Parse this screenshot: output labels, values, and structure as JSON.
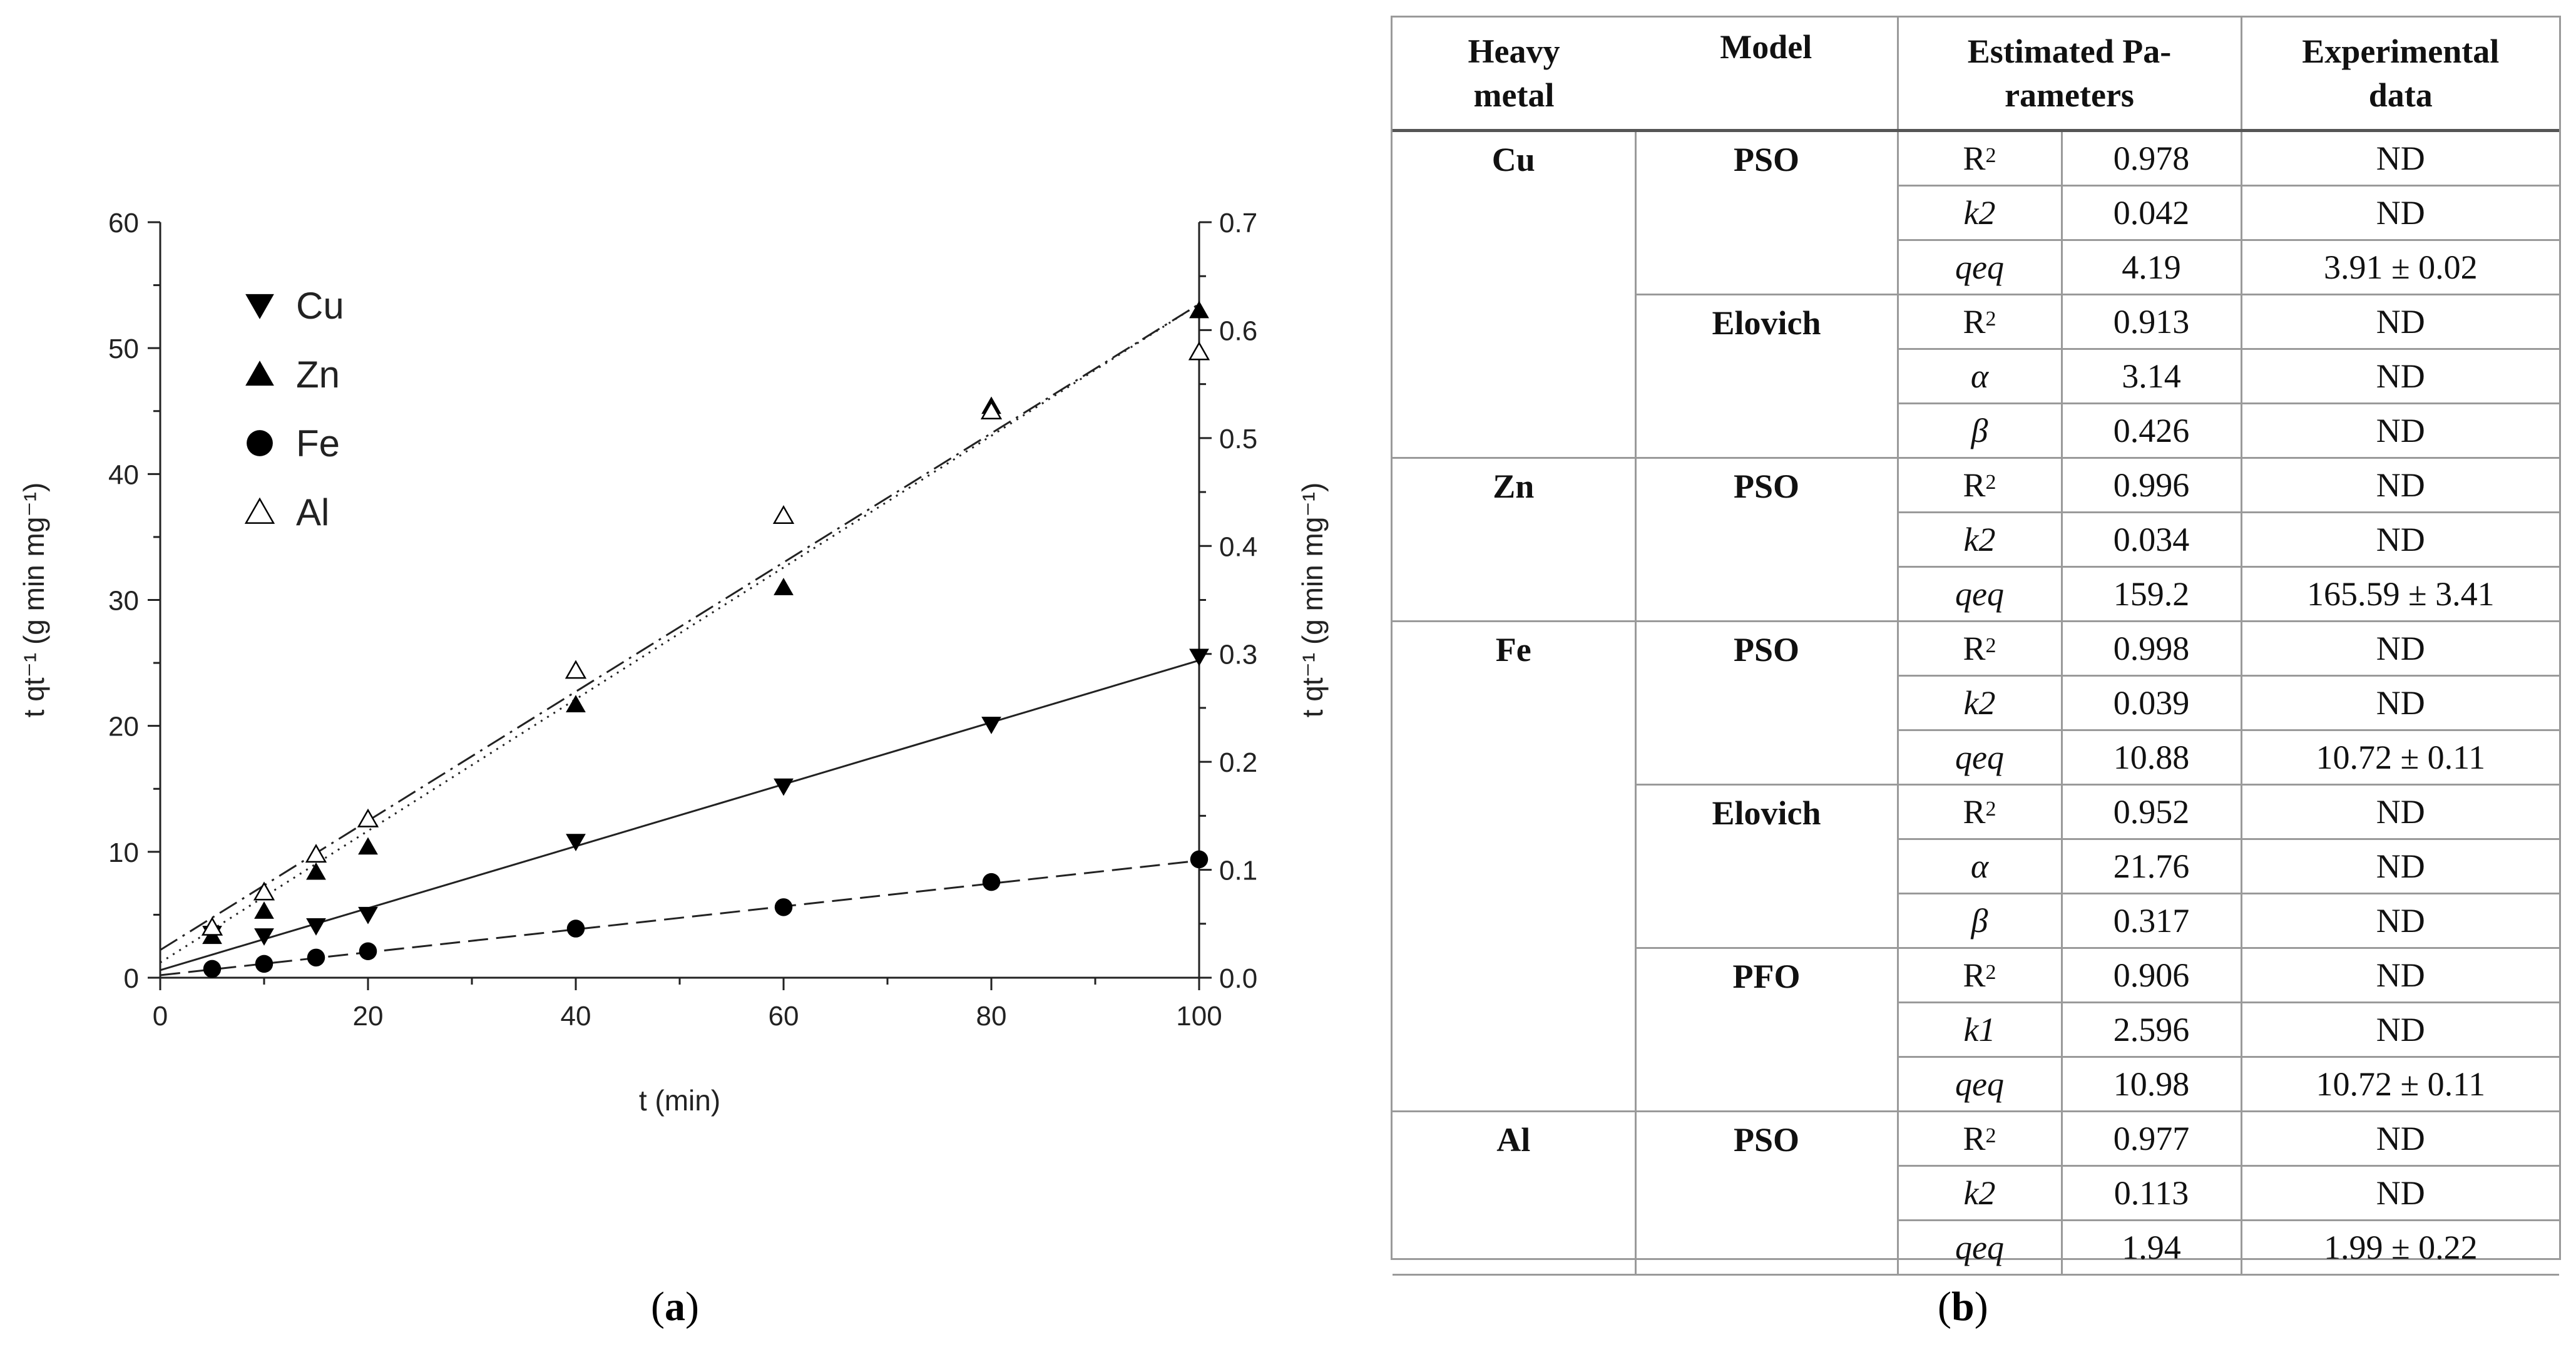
{
  "chart_data": {
    "type": "scatter",
    "xlabel": "t (min)",
    "ylabel_left": "t qt⁻¹ (g min mg⁻¹)",
    "ylabel_right": "t qt⁻¹ (g min mg⁻¹)",
    "xlim": [
      0,
      100
    ],
    "ylim_left": [
      0,
      60
    ],
    "ylim_right": [
      0,
      0.7
    ],
    "x_ticks": [
      "0",
      "20",
      "40",
      "60",
      "80",
      "100"
    ],
    "y_ticks_left": [
      "0",
      "10",
      "20",
      "30",
      "40",
      "50",
      "60"
    ],
    "y_ticks_right": [
      "0.0",
      "0.1",
      "0.2",
      "0.3",
      "0.4",
      "0.5",
      "0.6",
      "0.7"
    ],
    "legend": {
      "placement": "top-left",
      "entries": [
        "Cu",
        "Zn",
        "Fe",
        "Al"
      ]
    },
    "series": [
      {
        "name": "Cu",
        "marker": "triangle-down",
        "axis": "left",
        "line_style": "solid",
        "x": [
          5,
          10,
          15,
          20,
          40,
          60,
          80,
          100
        ],
        "y": [
          3.5,
          3.3,
          4.1,
          5.0,
          10.8,
          15.2,
          20.1,
          25.5
        ],
        "fit": [
          0.6,
          25.2
        ]
      },
      {
        "name": "Zn",
        "marker": "triangle-up",
        "axis": "left",
        "line_style": "dotted",
        "x": [
          5,
          10,
          15,
          20,
          40,
          60,
          80,
          100
        ],
        "y": [
          3.3,
          5.3,
          8.4,
          10.4,
          21.7,
          31.0,
          45.4,
          53.0
        ],
        "fit": [
          1.2,
          53.5
        ]
      },
      {
        "name": "Fe",
        "marker": "circle",
        "axis": "left",
        "line_style": "dashed",
        "x": [
          5,
          10,
          15,
          20,
          40,
          60,
          80,
          100
        ],
        "y": [
          0.7,
          1.1,
          1.6,
          2.1,
          3.9,
          5.6,
          7.6,
          9.4
        ],
        "fit": [
          0.2,
          9.3
        ]
      },
      {
        "name": "Al",
        "marker": "triangle-up-open",
        "axis": "left",
        "line_style": "dashdot",
        "x": [
          5,
          10,
          15,
          20,
          40,
          60,
          80,
          100
        ],
        "y": [
          4.0,
          6.8,
          9.8,
          12.6,
          24.4,
          36.7,
          45.0,
          49.7
        ],
        "fit": [
          2.2,
          53.5
        ]
      }
    ]
  },
  "panel_labels": {
    "a": "a",
    "b": "b"
  },
  "table": {
    "headers": [
      "Heavy metal",
      "Model",
      "Estimated Parameters",
      "Experimental data"
    ],
    "header_lines": {
      "metal": [
        "Heavy",
        "metal"
      ],
      "model": [
        "Model"
      ],
      "params": [
        "Estimated Pa-",
        "rameters"
      ],
      "exp": [
        "Experimental",
        "data"
      ]
    },
    "groups": [
      {
        "metal": "Cu",
        "models": [
          {
            "model": "PSO",
            "rows": [
              {
                "sym": "R",
                "sup": "2",
                "italic": false,
                "val": "0.978",
                "exp": "ND"
              },
              {
                "sym": "k2",
                "sup": "",
                "italic": true,
                "val": "0.042",
                "exp": "ND"
              },
              {
                "sym": "qeq",
                "sup": "",
                "italic": true,
                "val": "4.19",
                "exp": "3.91 ± 0.02"
              }
            ]
          },
          {
            "model": "Elovich",
            "rows": [
              {
                "sym": "R",
                "sup": "2",
                "italic": false,
                "val": "0.913",
                "exp": "ND"
              },
              {
                "sym": "α",
                "sup": "",
                "italic": true,
                "val": "3.14",
                "exp": "ND"
              },
              {
                "sym": "β",
                "sup": "",
                "italic": true,
                "val": "0.426",
                "exp": "ND"
              }
            ]
          }
        ]
      },
      {
        "metal": "Zn",
        "models": [
          {
            "model": "PSO",
            "rows": [
              {
                "sym": "R",
                "sup": "2",
                "italic": false,
                "val": "0.996",
                "exp": "ND"
              },
              {
                "sym": "k2",
                "sup": "",
                "italic": true,
                "val": "0.034",
                "exp": "ND"
              },
              {
                "sym": "qeq",
                "sup": "",
                "italic": true,
                "val": "159.2",
                "exp": "165.59 ± 3.41"
              }
            ]
          }
        ]
      },
      {
        "metal": "Fe",
        "models": [
          {
            "model": "PSO",
            "rows": [
              {
                "sym": "R",
                "sup": "2",
                "italic": false,
                "val": "0.998",
                "exp": "ND"
              },
              {
                "sym": "k2",
                "sup": "",
                "italic": true,
                "val": "0.039",
                "exp": "ND"
              },
              {
                "sym": "qeq",
                "sup": "",
                "italic": true,
                "val": "10.88",
                "exp": "10.72 ± 0.11"
              }
            ]
          },
          {
            "model": "Elovich",
            "rows": [
              {
                "sym": "R",
                "sup": "2",
                "italic": false,
                "val": "0.952",
                "exp": "ND"
              },
              {
                "sym": "α",
                "sup": "",
                "italic": true,
                "val": "21.76",
                "exp": "ND"
              },
              {
                "sym": "β",
                "sup": "",
                "italic": true,
                "val": "0.317",
                "exp": "ND"
              }
            ]
          },
          {
            "model": "PFO",
            "rows": [
              {
                "sym": "R",
                "sup": "2",
                "italic": false,
                "val": "0.906",
                "exp": "ND"
              },
              {
                "sym": "k1",
                "sup": "",
                "italic": true,
                "val": "2.596",
                "exp": "ND"
              },
              {
                "sym": "qeq",
                "sup": "",
                "italic": true,
                "val": "10.98",
                "exp": "10.72 ± 0.11"
              }
            ]
          }
        ]
      },
      {
        "metal": "Al",
        "models": [
          {
            "model": "PSO",
            "rows": [
              {
                "sym": "R",
                "sup": "2",
                "italic": false,
                "val": "0.977",
                "exp": "ND"
              },
              {
                "sym": "k2",
                "sup": "",
                "italic": true,
                "val": "0.113",
                "exp": "ND"
              },
              {
                "sym": "qeq",
                "sup": "",
                "italic": true,
                "val": "1.94",
                "exp": "1.99 ± 0.22"
              }
            ]
          }
        ]
      }
    ]
  }
}
